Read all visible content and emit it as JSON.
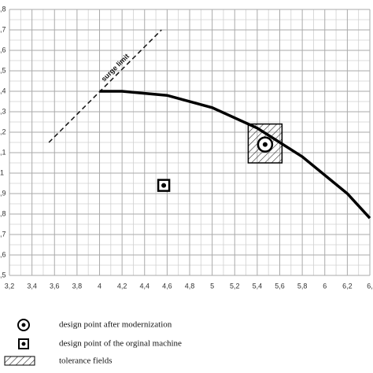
{
  "chart_data": {
    "type": "line",
    "xlim": [
      3.2,
      6.4
    ],
    "ylim": [
      0.5,
      1.8
    ],
    "xticks": [
      {
        "value": 3.2,
        "label": "3,2"
      },
      {
        "value": 3.4,
        "label": "3,4"
      },
      {
        "value": 3.6,
        "label": "3,6"
      },
      {
        "value": 3.8,
        "label": "3,8"
      },
      4,
      {
        "value": 4.2,
        "label": "4,2"
      },
      {
        "value": 4.4,
        "label": "4,4"
      },
      {
        "value": 4.6,
        "label": "4,6"
      },
      {
        "value": 4.8,
        "label": "4,8"
      },
      5,
      {
        "value": 5.2,
        "label": "5,2"
      },
      {
        "value": 5.4,
        "label": "5,4"
      },
      {
        "value": 5.6,
        "label": "5,6"
      },
      {
        "value": 5.8,
        "label": "5,8"
      },
      6,
      {
        "value": 6.2,
        "label": "6,2"
      },
      {
        "value": 6.4,
        "label": "6,"
      }
    ],
    "yticks": [
      {
        "value": 0.5,
        "label": ",5"
      },
      {
        "value": 0.6,
        "label": ",6"
      },
      {
        "value": 0.7,
        "label": ",7"
      },
      {
        "value": 0.8,
        "label": ",8"
      },
      {
        "value": 0.9,
        "label": ",9"
      },
      1,
      {
        "value": 1.1,
        "label": ",1"
      },
      {
        "value": 1.2,
        "label": ",2"
      },
      {
        "value": 1.3,
        "label": ",3"
      },
      {
        "value": 1.4,
        "label": ",4"
      },
      {
        "value": 1.5,
        "label": ",5"
      },
      {
        "value": 1.6,
        "label": ",6"
      },
      {
        "value": 1.7,
        "label": ",7"
      },
      {
        "value": 1.8,
        "label": ",8"
      }
    ],
    "grid": true,
    "series": [
      {
        "name": "surge limit",
        "color": "#111",
        "dashed": true,
        "x": [
          3.55,
          4.55
        ],
        "values": [
          1.15,
          1.7
        ]
      },
      {
        "color": "#000",
        "dashed": false,
        "x": [
          4.0,
          4.2,
          4.6,
          5.0,
          5.4,
          5.8,
          6.2,
          6.4
        ],
        "values": [
          1.4,
          1.4,
          1.38,
          1.32,
          1.22,
          1.08,
          0.9,
          0.78
        ]
      }
    ],
    "design_points": [
      {
        "label": "design point after modernization",
        "marker": "circle",
        "x": 5.47,
        "y": 1.14
      },
      {
        "label": "design point of the orginal machine",
        "marker": "square",
        "x": 4.57,
        "y": 0.94
      }
    ],
    "tolerance": {
      "label": "tolerance fields",
      "x": [
        5.32,
        5.62
      ],
      "y": [
        1.05,
        1.24
      ]
    }
  }
}
